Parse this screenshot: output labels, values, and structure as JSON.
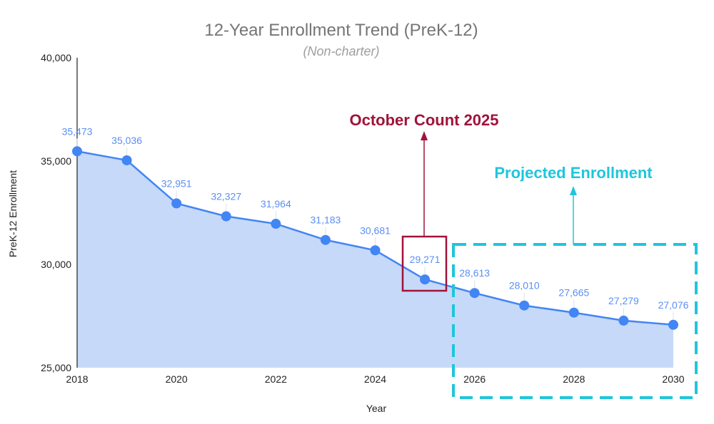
{
  "chart_data": {
    "type": "area",
    "title": "12-Year Enrollment Trend (PreK-12)",
    "subtitle": "(Non-charter)",
    "xlabel": "Year",
    "ylabel": "PreK-12 Enrollment",
    "xlim": [
      2018,
      2030
    ],
    "ylim": [
      25000,
      40000
    ],
    "x_ticks": [
      "2018",
      "2020",
      "2022",
      "2024",
      "2026",
      "2028",
      "2030"
    ],
    "y_ticks": [
      "25,000",
      "30,000",
      "35,000",
      "40,000"
    ],
    "grid": false,
    "x": [
      2018,
      2019,
      2020,
      2021,
      2022,
      2023,
      2024,
      2025,
      2026,
      2027,
      2028,
      2029,
      2030
    ],
    "values": [
      35473,
      35036,
      32951,
      32327,
      31964,
      31183,
      30681,
      29271,
      28613,
      28010,
      27665,
      27279,
      27076
    ],
    "data_labels": [
      "35,473",
      "35,036",
      "32,951",
      "32,327",
      "31,964",
      "31,183",
      "30,681",
      "29,271",
      "28,613",
      "28,010",
      "27,665",
      "27,279",
      "27,076"
    ],
    "colors": {
      "line": "#4285f4",
      "fill": "#c6d9f8",
      "label": "#5b8ff5",
      "october": "#a0133a",
      "projected": "#1ec6dc"
    },
    "annotations": [
      {
        "text": "October Count 2025",
        "highlight_years": [
          2025
        ]
      },
      {
        "text": "Projected Enrollment",
        "highlight_years": [
          2026,
          2030
        ]
      }
    ]
  }
}
